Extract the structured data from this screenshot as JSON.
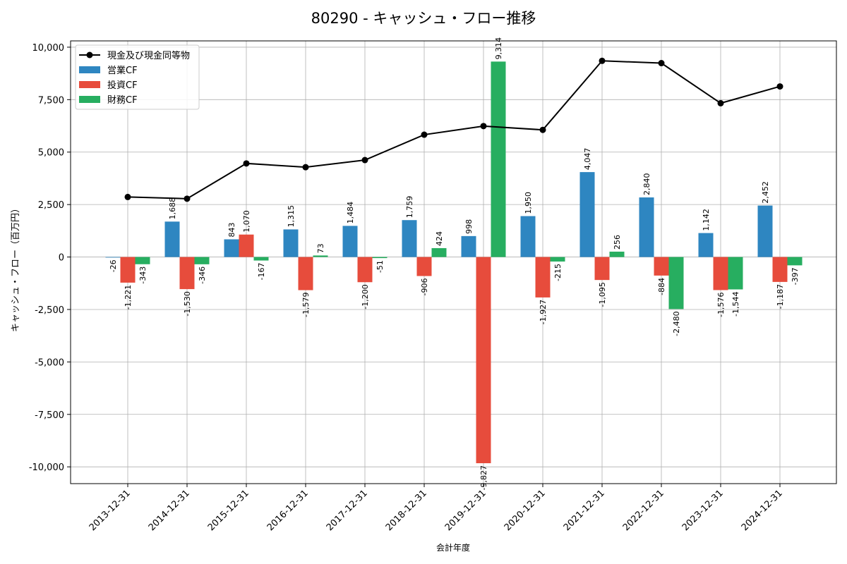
{
  "chart_data": {
    "type": "bar",
    "title": "80290 - キャッシュ・フロー推移",
    "xlabel": "会計年度",
    "ylabel": "キャッシュ・フロー（百万円）",
    "ylim": [
      -10800,
      10300
    ],
    "yticks": [
      -10000,
      -7500,
      -5000,
      -2500,
      0,
      2500,
      5000,
      7500,
      10000
    ],
    "ytick_labels": [
      "-10,000",
      "-7,500",
      "-5,000",
      "-2,500",
      "0",
      "2,500",
      "5,000",
      "7,500",
      "10,000"
    ],
    "grid": true,
    "legend_position": "top-left",
    "categories": [
      "2013-12-31",
      "2014-12-31",
      "2015-12-31",
      "2016-12-31",
      "2017-12-31",
      "2018-12-31",
      "2019-12-31",
      "2020-12-31",
      "2021-12-31",
      "2022-12-31",
      "2023-12-31",
      "2024-12-31"
    ],
    "series": [
      {
        "name": "営業CF",
        "kind": "bar",
        "color": "#2e86c1",
        "values": [
          -26,
          1688,
          843,
          1315,
          1484,
          1759,
          998,
          1950,
          4047,
          2840,
          1142,
          2452
        ],
        "labels": [
          "-26",
          "1,688",
          "843",
          "1,315",
          "1,484",
          "1,759",
          "998",
          "1,950",
          "4,047",
          "2,840",
          "1,142",
          "2,452"
        ]
      },
      {
        "name": "投資CF",
        "kind": "bar",
        "color": "#e74c3c",
        "values": [
          -1221,
          -1530,
          1070,
          -1579,
          -1200,
          -906,
          -9827,
          -1927,
          -1095,
          -884,
          -1576,
          -1187
        ],
        "labels": [
          "-1,221",
          "-1,530",
          "1,070",
          "-1,579",
          "-1,200",
          "-906",
          "-9,827",
          "-1,927",
          "-1,095",
          "-884",
          "-1,576",
          "-1,187"
        ]
      },
      {
        "name": "財務CF",
        "kind": "bar",
        "color": "#27ae60",
        "values": [
          -343,
          -346,
          -167,
          73,
          -51,
          424,
          9314,
          -215,
          256,
          -2480,
          -1544,
          -397
        ],
        "labels": [
          "-343",
          "-346",
          "-167",
          "73",
          "-51",
          "424",
          "9,314",
          "-215",
          "256",
          "-2,480",
          "-1,544",
          "-397"
        ]
      },
      {
        "name": "現金及び現金同等物",
        "kind": "line",
        "color": "#000000",
        "values": [
          2860,
          2780,
          4460,
          4280,
          4620,
          5830,
          6240,
          6060,
          9350,
          9240,
          7330,
          8130
        ]
      }
    ]
  }
}
